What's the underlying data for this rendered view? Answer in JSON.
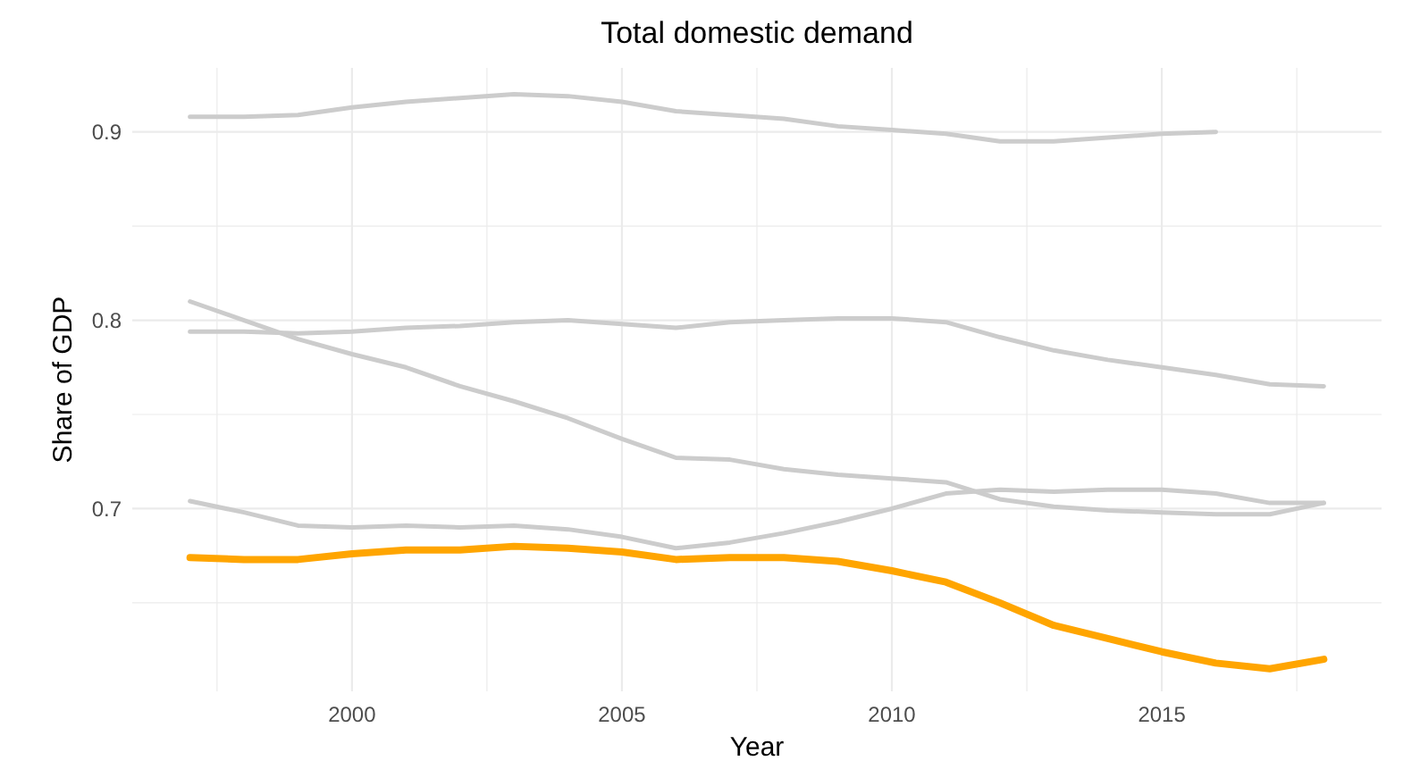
{
  "chart_data": {
    "type": "line",
    "title": "Total domestic demand",
    "xlabel": "Year",
    "ylabel": "Share of GDP",
    "x": [
      1997,
      1998,
      1999,
      2000,
      2001,
      2002,
      2003,
      2004,
      2005,
      2006,
      2007,
      2008,
      2009,
      2010,
      2011,
      2012,
      2013,
      2014,
      2015,
      2016,
      2017,
      2018
    ],
    "xlim": [
      1995.93,
      2019.07
    ],
    "ylim": [
      0.603,
      0.934
    ],
    "xticks": [
      {
        "value": 1997.5,
        "label": null
      },
      2000,
      {
        "value": 2002.5,
        "label": null
      },
      2005,
      {
        "value": 2007.5,
        "label": null
      },
      2010,
      {
        "value": 2012.5,
        "label": null
      },
      2015,
      {
        "value": 2017.5,
        "label": null
      }
    ],
    "yticks": [
      {
        "value": 0.65,
        "label": null
      },
      0.7,
      {
        "value": 0.75,
        "label": null
      },
      0.8,
      {
        "value": 0.85,
        "label": null
      },
      0.9
    ],
    "grid": true,
    "marker": "none",
    "line_style": "solid",
    "series": [
      {
        "color": "#cccccc",
        "values": [
          0.908,
          0.908,
          0.909,
          0.913,
          0.916,
          0.918,
          0.92,
          0.919,
          0.916,
          0.911,
          0.909,
          0.907,
          0.903,
          0.901,
          0.899,
          0.895,
          0.895,
          0.897,
          0.899,
          0.9,
          null,
          null
        ]
      },
      {
        "color": "#cccccc",
        "values": [
          0.794,
          0.794,
          0.793,
          0.794,
          0.796,
          0.797,
          0.799,
          0.8,
          0.798,
          0.796,
          0.799,
          0.8,
          0.801,
          0.801,
          0.799,
          0.791,
          0.784,
          0.779,
          0.775,
          0.771,
          0.766,
          0.765
        ]
      },
      {
        "color": "#cccccc",
        "values": [
          0.81,
          0.8,
          0.79,
          0.782,
          0.775,
          0.765,
          0.757,
          0.748,
          0.737,
          0.727,
          0.726,
          0.721,
          0.718,
          0.716,
          0.714,
          0.705,
          0.701,
          0.699,
          0.698,
          0.697,
          0.697,
          0.703
        ]
      },
      {
        "color": "#cccccc",
        "values": [
          0.704,
          0.698,
          0.691,
          0.69,
          0.691,
          0.69,
          0.691,
          0.689,
          0.685,
          0.679,
          0.682,
          0.687,
          0.693,
          0.7,
          0.708,
          0.71,
          0.709,
          0.71,
          0.71,
          0.708,
          0.703,
          0.703
        ]
      },
      {
        "color": "#ffa500",
        "values": [
          0.674,
          0.673,
          0.673,
          0.676,
          0.678,
          0.678,
          0.68,
          0.679,
          0.677,
          0.673,
          0.674,
          0.674,
          0.672,
          0.667,
          0.661,
          0.65,
          0.638,
          0.631,
          0.624,
          0.618,
          0.615,
          0.62
        ]
      }
    ]
  }
}
